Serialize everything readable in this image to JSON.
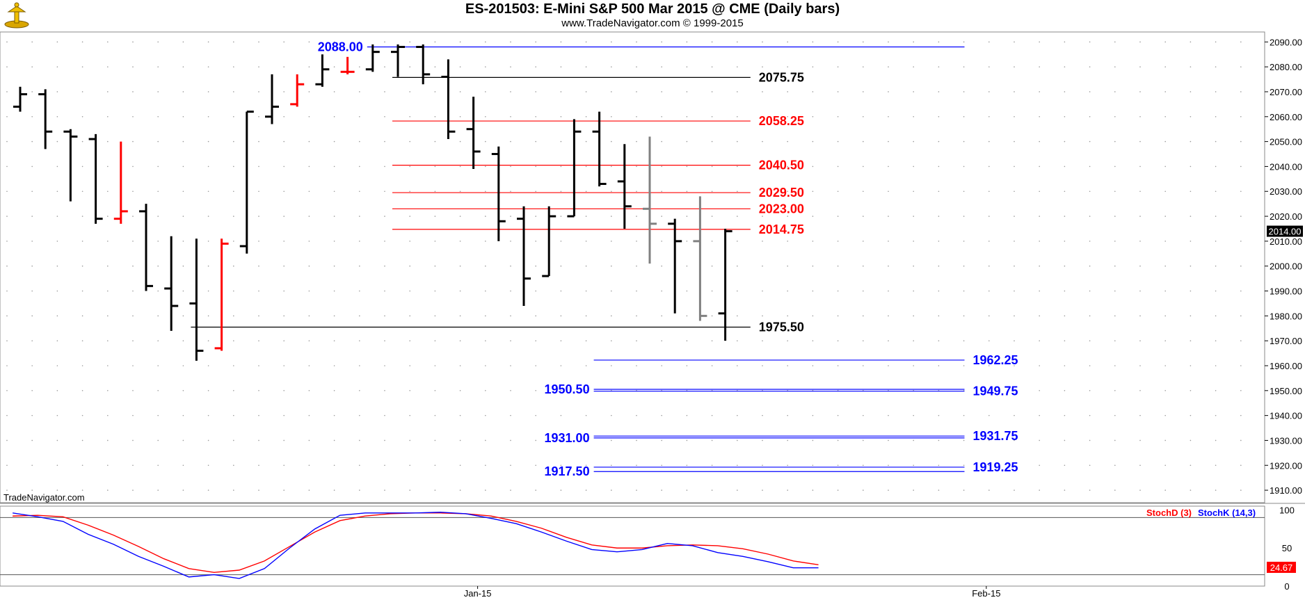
{
  "header": {
    "title": "ES-201503:  E-Mini S&P 500 Mar 2015 @ CME  (Daily bars)",
    "subtitle": "www.TradeNavigator.com © 1999-2015"
  },
  "watermark": "TradeNavigator.com",
  "colors": {
    "up": "#000000",
    "down_reversal": "#ff0000",
    "gray_bar": "#808080",
    "blue_level": "#0000ff",
    "red_level": "#ff0000",
    "black_level": "#000000",
    "stochD": "#ff0000",
    "stochK": "#0000ff"
  },
  "chart_data": [
    {
      "type": "ohlc",
      "ylim": [
        1905,
        2094
      ],
      "price_axis_ticks": [
        "2090.00",
        "2080.00",
        "2070.00",
        "2060.00",
        "2050.00",
        "2040.00",
        "2030.00",
        "2020.00",
        "2010.00",
        "2000.00",
        "1990.00",
        "1980.00",
        "1970.00",
        "1960.00",
        "1950.00",
        "1940.00",
        "1930.00",
        "1920.00",
        "1910.00"
      ],
      "last_price_label": "2014.00",
      "x_axis_labels": [
        {
          "label": "Jan-15",
          "bar_index": 18
        },
        {
          "label": "Feb-15",
          "bar_index": 38.2
        }
      ],
      "bars": [
        {
          "o": 2064,
          "h": 2072,
          "l": 2062,
          "c": 2069,
          "color": "up"
        },
        {
          "o": 2069,
          "h": 2071,
          "l": 2047,
          "c": 2054,
          "color": "up"
        },
        {
          "o": 2054,
          "h": 2055,
          "l": 2026,
          "c": 2052,
          "color": "up"
        },
        {
          "o": 2051,
          "h": 2053,
          "l": 2017,
          "c": 2019,
          "color": "up"
        },
        {
          "o": 2019,
          "h": 2050,
          "l": 2017,
          "c": 2022,
          "color": "down_reversal"
        },
        {
          "o": 2022,
          "h": 2025,
          "l": 1990,
          "c": 1992,
          "color": "up"
        },
        {
          "o": 1991,
          "h": 2012,
          "l": 1974,
          "c": 1984,
          "color": "up"
        },
        {
          "o": 1985,
          "h": 2011,
          "l": 1962,
          "c": 1966,
          "color": "up"
        },
        {
          "o": 1967,
          "h": 2011,
          "l": 1966,
          "c": 2009,
          "color": "down_reversal"
        },
        {
          "o": 2008,
          "h": 2062,
          "l": 2005,
          "c": 2062,
          "color": "up"
        },
        {
          "o": 2060,
          "h": 2077,
          "l": 2057,
          "c": 2064,
          "color": "up"
        },
        {
          "o": 2065,
          "h": 2077,
          "l": 2064,
          "c": 2073,
          "color": "down_reversal"
        },
        {
          "o": 2073,
          "h": 2085,
          "l": 2072,
          "c": 2079,
          "color": "up"
        },
        {
          "o": 2078,
          "h": 2084,
          "l": 2077,
          "c": 2078,
          "color": "down_reversal"
        },
        {
          "o": 2079,
          "h": 2089,
          "l": 2078,
          "c": 2086,
          "color": "up"
        },
        {
          "o": 2086,
          "h": 2089,
          "l": 2076,
          "c": 2088,
          "color": "up"
        },
        {
          "o": 2088,
          "h": 2089,
          "l": 2073,
          "c": 2077,
          "color": "up"
        },
        {
          "o": 2076,
          "h": 2083,
          "l": 2051,
          "c": 2054,
          "color": "up"
        },
        {
          "o": 2055,
          "h": 2068,
          "l": 2039,
          "c": 2046,
          "color": "up"
        },
        {
          "o": 2045,
          "h": 2048,
          "l": 2010,
          "c": 2018,
          "color": "up"
        },
        {
          "o": 2019,
          "h": 2024,
          "l": 1984,
          "c": 1995,
          "color": "up"
        },
        {
          "o": 1996,
          "h": 2024,
          "l": 1996,
          "c": 2020,
          "color": "up"
        },
        {
          "o": 2020,
          "h": 2059,
          "l": 2020,
          "c": 2054,
          "color": "up"
        },
        {
          "o": 2054,
          "h": 2062,
          "l": 2032,
          "c": 2033,
          "color": "up"
        },
        {
          "o": 2034,
          "h": 2049,
          "l": 2015,
          "c": 2024,
          "color": "up"
        },
        {
          "o": 2023,
          "h": 2052,
          "l": 2001,
          "c": 2017,
          "color": "gray_bar"
        },
        {
          "o": 2017,
          "h": 2019,
          "l": 1981,
          "c": 2010,
          "color": "up"
        },
        {
          "o": 2010,
          "h": 2028,
          "l": 1978,
          "c": 1980,
          "color": "gray_bar"
        },
        {
          "o": 1981,
          "h": 2015,
          "l": 1970,
          "c": 2014,
          "color": "up"
        }
      ],
      "levels": [
        {
          "price": 2088.0,
          "label": "2088.00",
          "color": "blue_level",
          "from_bar": 14,
          "to_bar": 37.5,
          "label_side": "left",
          "label_at_bar": 14
        },
        {
          "price": 2075.75,
          "label": "2075.75",
          "color": "black_level",
          "from_bar": 15,
          "to_bar": 29,
          "label_side": "right"
        },
        {
          "price": 2058.25,
          "label": "2058.25",
          "color": "red_level",
          "from_bar": 15,
          "to_bar": 29,
          "label_side": "right"
        },
        {
          "price": 2040.5,
          "label": "2040.50",
          "color": "red_level",
          "from_bar": 15,
          "to_bar": 29,
          "label_side": "right"
        },
        {
          "price": 2029.5,
          "label": "2029.50",
          "color": "red_level",
          "from_bar": 15,
          "to_bar": 29,
          "label_side": "right"
        },
        {
          "price": 2023.0,
          "label": "2023.00",
          "color": "red_level",
          "from_bar": 15,
          "to_bar": 29,
          "label_side": "right"
        },
        {
          "price": 2014.75,
          "label": "2014.75",
          "color": "red_level",
          "from_bar": 15,
          "to_bar": 29,
          "label_side": "right"
        },
        {
          "price": 1975.5,
          "label": "1975.50",
          "color": "black_level",
          "from_bar": 7,
          "to_bar": 29,
          "label_side": "right"
        },
        {
          "price": 1962.25,
          "label": "1962.25",
          "color": "blue_level",
          "from_bar": 23,
          "to_bar": 37.5,
          "label_side": "right"
        },
        {
          "price": 1950.5,
          "label": "1950.50",
          "color": "blue_level",
          "from_bar": 23,
          "to_bar": 37.5,
          "label_side": "left",
          "label_at_bar": 23
        },
        {
          "price": 1949.75,
          "label": "1949.75",
          "color": "blue_level",
          "from_bar": 23,
          "to_bar": 37.5,
          "label_side": "right"
        },
        {
          "price": 1931.0,
          "label": "1931.00",
          "color": "blue_level",
          "from_bar": 23,
          "to_bar": 37.5,
          "label_side": "left",
          "label_at_bar": 23
        },
        {
          "price": 1931.75,
          "label": "1931.75",
          "color": "blue_level",
          "from_bar": 23,
          "to_bar": 37.5,
          "label_side": "right"
        },
        {
          "price": 1917.5,
          "label": "1917.50",
          "color": "blue_level",
          "from_bar": 23,
          "to_bar": 37.5,
          "label_side": "left",
          "label_at_bar": 23
        },
        {
          "price": 1919.25,
          "label": "1919.25",
          "color": "blue_level",
          "from_bar": 23,
          "to_bar": 37.5,
          "label_side": "right"
        }
      ]
    },
    {
      "type": "line",
      "ylim": [
        0,
        105
      ],
      "axis_ticks": [
        "100",
        "50",
        "0"
      ],
      "reference_lines": [
        90,
        15
      ],
      "legend": [
        {
          "name": "StochD (3)",
          "color": "stochD"
        },
        {
          "name": "StochK (14,3)",
          "color": "stochK"
        }
      ],
      "last_value_label": "24.67",
      "series": [
        {
          "name": "StochD (3)",
          "color": "stochD",
          "values": [
            [
              0,
              92
            ],
            [
              1,
              93
            ],
            [
              2,
              91
            ],
            [
              3,
              80
            ],
            [
              4,
              67
            ],
            [
              5,
              52
            ],
            [
              6,
              36
            ],
            [
              7,
              23
            ],
            [
              8,
              18
            ],
            [
              9,
              21
            ],
            [
              10,
              33
            ],
            [
              11,
              52
            ],
            [
              12,
              71
            ],
            [
              13,
              86
            ],
            [
              14,
              92
            ],
            [
              15,
              95
            ],
            [
              16,
              96
            ],
            [
              17,
              96
            ],
            [
              18,
              95
            ],
            [
              19,
              92
            ],
            [
              20,
              85
            ],
            [
              21,
              76
            ],
            [
              22,
              64
            ],
            [
              23,
              54
            ],
            [
              24,
              50
            ],
            [
              25,
              50
            ],
            [
              26,
              53
            ],
            [
              27,
              54
            ],
            [
              28,
              53
            ],
            [
              29,
              49
            ],
            [
              30,
              42
            ],
            [
              31,
              33
            ],
            [
              32,
              28
            ]
          ]
        },
        {
          "name": "StochK (14,3)",
          "color": "stochK",
          "values": [
            [
              0,
              96
            ],
            [
              1,
              91
            ],
            [
              2,
              85
            ],
            [
              3,
              68
            ],
            [
              4,
              55
            ],
            [
              5,
              39
            ],
            [
              6,
              26
            ],
            [
              7,
              12
            ],
            [
              8,
              15
            ],
            [
              9,
              10
            ],
            [
              10,
              23
            ],
            [
              11,
              50
            ],
            [
              12,
              75
            ],
            [
              13,
              93
            ],
            [
              14,
              96
            ],
            [
              15,
              96
            ],
            [
              16,
              96
            ],
            [
              17,
              97
            ],
            [
              18,
              95
            ],
            [
              19,
              89
            ],
            [
              20,
              82
            ],
            [
              21,
              71
            ],
            [
              22,
              59
            ],
            [
              23,
              48
            ],
            [
              24,
              45
            ],
            [
              25,
              48
            ],
            [
              26,
              56
            ],
            [
              27,
              53
            ],
            [
              28,
              44
            ],
            [
              29,
              39
            ],
            [
              30,
              32
            ],
            [
              31,
              24
            ],
            [
              32,
              24
            ]
          ]
        }
      ]
    }
  ]
}
